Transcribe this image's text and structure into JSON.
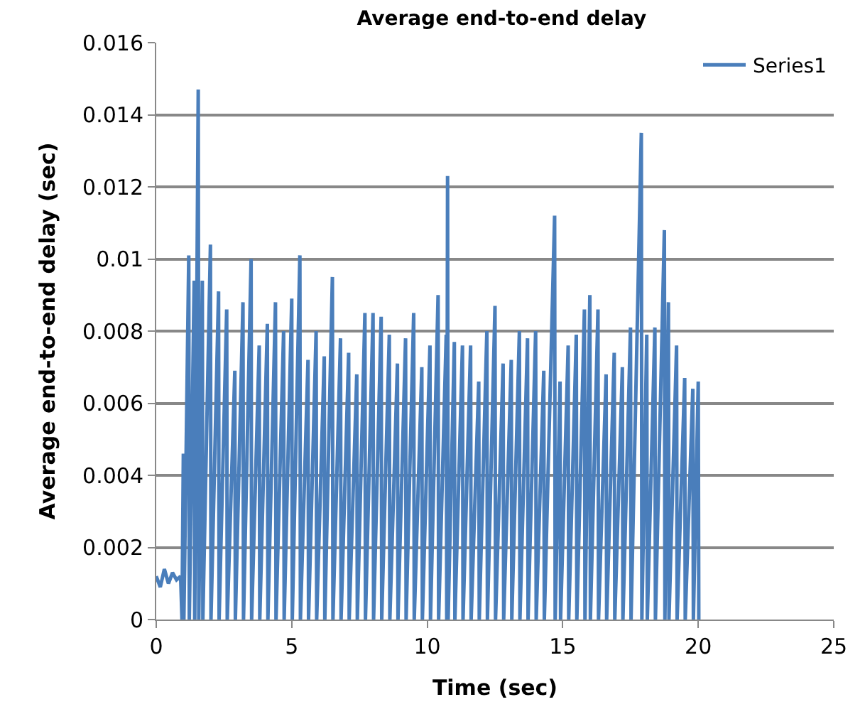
{
  "chart_data": {
    "type": "line",
    "title": "Average end-to-end delay",
    "xlabel": "Time (sec)",
    "ylabel": "Average end-to-end delay (sec)",
    "xlim": [
      0,
      25
    ],
    "xticks": [
      0,
      5,
      10,
      15,
      20,
      25
    ],
    "ylim": [
      0,
      0.016
    ],
    "yticks": [
      0,
      0.002,
      0.004,
      0.006,
      0.008,
      0.01,
      0.012,
      0.014,
      0.016
    ],
    "grid": "y",
    "legend": "top right",
    "marker": "none",
    "line_style": "solid",
    "series": [
      {
        "name": "Series1",
        "color": "#4a7ebb",
        "x": [
          0,
          0.15,
          0.3,
          0.45,
          0.6,
          0.75,
          0.9,
          0.95,
          1.0,
          1.02,
          1.2,
          1.22,
          1.4,
          1.42,
          1.55,
          1.57,
          1.7,
          1.72,
          2.0,
          2.02,
          2.3,
          2.32,
          2.6,
          2.62,
          2.9,
          2.92,
          3.2,
          3.22,
          3.5,
          3.52,
          3.8,
          3.82,
          4.1,
          4.12,
          4.4,
          4.42,
          4.7,
          4.72,
          5.0,
          5.02,
          5.3,
          5.32,
          5.6,
          5.62,
          5.9,
          5.92,
          6.2,
          6.22,
          6.5,
          6.52,
          6.8,
          6.82,
          7.1,
          7.12,
          7.4,
          7.42,
          7.7,
          7.72,
          8.0,
          8.02,
          8.3,
          8.32,
          8.6,
          8.62,
          8.9,
          8.92,
          9.2,
          9.22,
          9.5,
          9.52,
          9.8,
          9.82,
          10.1,
          10.12,
          10.4,
          10.42,
          10.7,
          10.72,
          10.75,
          10.77,
          11.0,
          11.02,
          11.3,
          11.32,
          11.6,
          11.62,
          11.9,
          11.92,
          12.2,
          12.22,
          12.5,
          12.52,
          12.8,
          12.82,
          13.1,
          13.12,
          13.4,
          13.42,
          13.7,
          13.72,
          14.0,
          14.02,
          14.3,
          14.32,
          14.7,
          14.72,
          14.9,
          14.92,
          15.2,
          15.22,
          15.5,
          15.52,
          15.8,
          15.82,
          16.0,
          16.02,
          16.3,
          16.32,
          16.6,
          16.62,
          16.9,
          16.92,
          17.2,
          17.22,
          17.5,
          17.52,
          17.9,
          17.92,
          18.1,
          18.12,
          18.4,
          18.42,
          18.75,
          18.77,
          18.9,
          18.92,
          19.2,
          19.22,
          19.5,
          19.52,
          19.8,
          19.82,
          20.0,
          20.02
        ],
        "values": [
          0.0012,
          0.0009,
          0.0014,
          0.001,
          0.0013,
          0.0011,
          0.0012,
          0,
          0.0046,
          0,
          0.0101,
          0,
          0.0094,
          0,
          0.0147,
          0,
          0.0094,
          0,
          0.0104,
          0,
          0.0091,
          0,
          0.0086,
          0,
          0.0069,
          0,
          0.0088,
          0,
          0.01,
          0,
          0.0076,
          0,
          0.0082,
          0,
          0.0088,
          0,
          0.008,
          0,
          0.0089,
          0,
          0.0101,
          0,
          0.0072,
          0,
          0.008,
          0,
          0.0073,
          0,
          0.0095,
          0,
          0.0078,
          0,
          0.0074,
          0,
          0.0068,
          0,
          0.0085,
          0,
          0.0085,
          0,
          0.0084,
          0,
          0.0079,
          0,
          0.0071,
          0,
          0.0078,
          0,
          0.0085,
          0,
          0.007,
          0,
          0.0076,
          0,
          0.009,
          0,
          0.0079,
          0,
          0.0123,
          0,
          0.0077,
          0,
          0.0076,
          0,
          0.0076,
          0,
          0.0066,
          0,
          0.008,
          0,
          0.0087,
          0,
          0.0071,
          0,
          0.0072,
          0,
          0.008,
          0,
          0.0078,
          0,
          0.008,
          0,
          0.0069,
          0,
          0.0112,
          0,
          0.0066,
          0,
          0.0076,
          0,
          0.0079,
          0,
          0.0086,
          0,
          0.009,
          0,
          0.0086,
          0,
          0.0068,
          0,
          0.0074,
          0,
          0.007,
          0,
          0.0081,
          0,
          0.0135,
          0,
          0.0079,
          0,
          0.0081,
          0,
          0.0108,
          0,
          0.0088,
          0,
          0.0076,
          0,
          0.0067,
          0,
          0.0064,
          0,
          0.0066,
          0
        ]
      }
    ]
  }
}
